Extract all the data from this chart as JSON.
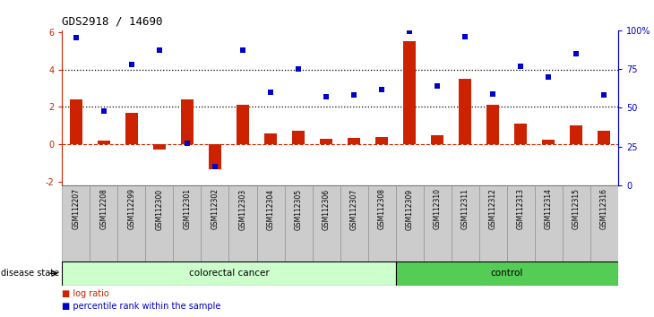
{
  "title": "GDS2918 / 14690",
  "samples": [
    "GSM112207",
    "GSM112208",
    "GSM112299",
    "GSM112300",
    "GSM112301",
    "GSM112302",
    "GSM112303",
    "GSM112304",
    "GSM112305",
    "GSM112306",
    "GSM112307",
    "GSM112308",
    "GSM112309",
    "GSM112310",
    "GSM112311",
    "GSM112312",
    "GSM112313",
    "GSM112314",
    "GSM112315",
    "GSM112316"
  ],
  "log_ratio": [
    2.4,
    0.2,
    1.7,
    -0.3,
    2.4,
    -1.35,
    2.1,
    0.6,
    0.7,
    0.3,
    0.35,
    0.4,
    5.5,
    0.5,
    3.5,
    2.1,
    1.1,
    0.25,
    1.0,
    0.7
  ],
  "percentile_pct": [
    95,
    48,
    78,
    87,
    27,
    12,
    87,
    60,
    75,
    57,
    58,
    62,
    99,
    64,
    96,
    59,
    77,
    70,
    85,
    58
  ],
  "colorectal_count": 12,
  "control_count": 8,
  "bar_color": "#cc2200",
  "point_color": "#0000cc",
  "left_ylim": [
    -2.2,
    6.1
  ],
  "right_ylim": [
    0,
    100
  ],
  "hlines": [
    2.0,
    4.0
  ],
  "cancer_fill": "#ccffcc",
  "control_fill": "#55cc55",
  "tick_fill": "#cccccc",
  "cancer_label": "colorectal cancer",
  "control_label": "control",
  "disease_state_label": "disease state",
  "legend_bar": "log ratio",
  "legend_point": "percentile rank within the sample",
  "title_fontsize": 9,
  "bar_width": 0.45
}
